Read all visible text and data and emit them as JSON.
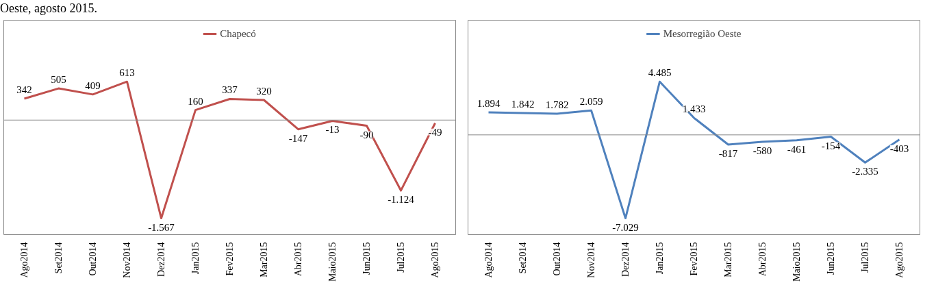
{
  "chart_data": [
    {
      "type": "line",
      "categories": [
        "Ago2014",
        "Set2014",
        "Out2014",
        "Nov2014",
        "Dez2014",
        "Jan2015",
        "Fev2015",
        "Mar2015",
        "Abr2015",
        "Maio2015",
        "Jun2015",
        "Jul2015",
        "Ago2015"
      ],
      "annotations": [
        "Oeste, agosto 2015."
      ],
      "legend": "top",
      "grid": false,
      "marker": "none",
      "data_labels": true,
      "series": [
        {
          "name": "Chapecó",
          "color": "#c0504d",
          "values": [
            342,
            505,
            409,
            613,
            -1567,
            160,
            337,
            320,
            -147,
            -13,
            -90,
            -1124,
            -49
          ],
          "value_labels": [
            "342",
            "505",
            "409",
            "613",
            "-1.567",
            "160",
            "337",
            "320",
            "-147",
            "-13",
            "-90",
            "-1.124",
            "-49"
          ]
        }
      ]
    },
    {
      "type": "line",
      "categories": [
        "Ago2014",
        "Set2014",
        "Out2014",
        "Nov2014",
        "Dez2014",
        "Jan2015",
        "Fev2015",
        "Mar2015",
        "Abr2015",
        "Maio2015",
        "Jun2015",
        "Jul2015",
        "Ago2015"
      ],
      "legend": "top",
      "grid": false,
      "marker": "none",
      "data_labels": true,
      "series": [
        {
          "name": "Mesorregião Oeste",
          "color": "#4f81bd",
          "values": [
            1894,
            1842,
            1782,
            2059,
            -7029,
            4485,
            1433,
            -817,
            -580,
            -461,
            -154,
            -2335,
            -403
          ],
          "value_labels": [
            "1.894",
            "1.842",
            "1.782",
            "2.059",
            "-7.029",
            "4.485",
            "1.433",
            "-817",
            "-580",
            "-461",
            "-154",
            "-2.335",
            "-403"
          ]
        }
      ]
    }
  ]
}
